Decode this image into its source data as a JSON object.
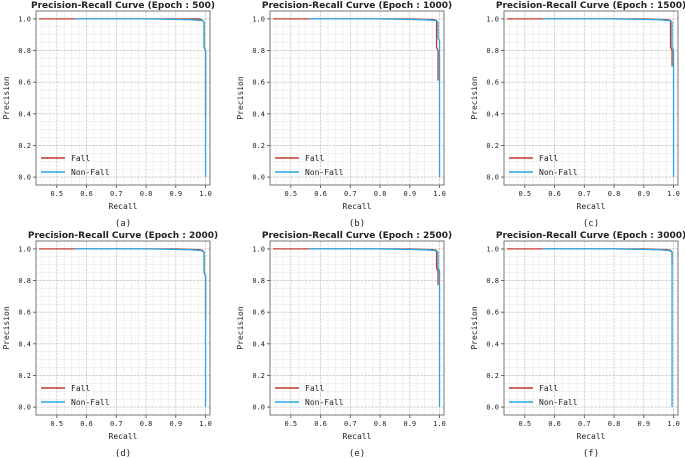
{
  "figure": {
    "legend_labels": [
      "Fall",
      "Non-Fall"
    ],
    "colors": {
      "fall": "#c0392b",
      "non_fall": "#29a8e0",
      "grid_major": "#b8b8b8",
      "grid_minor": "#e6e6e6",
      "frame": "#555555"
    }
  },
  "chart_data": [
    {
      "type": "line",
      "title": "Precision-Recall Curve (Epoch : 500)",
      "caption": "(a)",
      "xlabel": "Recall",
      "ylabel": "Precision",
      "xlim": [
        0.43,
        1.015
      ],
      "ylim": [
        -0.05,
        1.05
      ],
      "xticks": [
        "0.5",
        "0.6",
        "0.7",
        "0.8",
        "0.9",
        "1.0"
      ],
      "yticks": [
        "0.0",
        "0.2",
        "0.4",
        "0.6",
        "0.8",
        "1.0"
      ],
      "grid": true,
      "legend": "lower-left",
      "series": [
        {
          "name": "Fall",
          "x": [
            0.44,
            0.56,
            0.9,
            0.98,
            0.99,
            0.995,
            0.995,
            1.0,
            1.0
          ],
          "y": [
            1.0,
            1.0,
            1.0,
            1.0,
            0.99,
            0.98,
            0.82,
            0.8,
            0.38
          ]
        },
        {
          "name": "Non-Fall",
          "x": [
            0.56,
            0.8,
            0.95,
            0.985,
            0.99,
            0.995,
            0.995,
            1.0,
            1.0
          ],
          "y": [
            1.0,
            1.0,
            0.995,
            0.99,
            0.99,
            0.98,
            0.82,
            0.8,
            0.0
          ]
        }
      ]
    },
    {
      "type": "line",
      "title": "Precision-Recall Curve (Epoch : 1000)",
      "caption": "(b)",
      "xlabel": "Recall",
      "ylabel": "Precision",
      "xlim": [
        0.43,
        1.015
      ],
      "ylim": [
        -0.05,
        1.05
      ],
      "xticks": [
        "0.5",
        "0.6",
        "0.7",
        "0.8",
        "0.9",
        "1.0"
      ],
      "yticks": [
        "0.0",
        "0.2",
        "0.4",
        "0.6",
        "0.8",
        "1.0"
      ],
      "grid": true,
      "legend": "lower-left",
      "series": [
        {
          "name": "Fall",
          "x": [
            0.44,
            0.56,
            0.9,
            0.98,
            0.99,
            0.99,
            0.995,
            0.995
          ],
          "y": [
            1.0,
            1.0,
            1.0,
            0.995,
            0.99,
            0.82,
            0.8,
            0.61
          ]
        },
        {
          "name": "Non-Fall",
          "x": [
            0.56,
            0.8,
            0.95,
            0.985,
            0.995,
            0.995,
            1.0,
            1.0
          ],
          "y": [
            1.0,
            1.0,
            0.995,
            0.99,
            0.98,
            0.88,
            0.86,
            0.0
          ]
        }
      ]
    },
    {
      "type": "line",
      "title": "Precision-Recall Curve (Epoch : 1500)",
      "caption": "(c)",
      "xlabel": "Recall",
      "ylabel": "Precision",
      "xlim": [
        0.43,
        1.015
      ],
      "ylim": [
        -0.05,
        1.05
      ],
      "xticks": [
        "0.5",
        "0.6",
        "0.7",
        "0.8",
        "0.9",
        "1.0"
      ],
      "yticks": [
        "0.0",
        "0.2",
        "0.4",
        "0.6",
        "0.8",
        "1.0"
      ],
      "grid": true,
      "legend": "lower-left",
      "series": [
        {
          "name": "Fall",
          "x": [
            0.44,
            0.56,
            0.9,
            0.98,
            0.99,
            0.99,
            0.995,
            0.995
          ],
          "y": [
            1.0,
            1.0,
            1.0,
            0.995,
            0.99,
            0.82,
            0.8,
            0.7
          ]
        },
        {
          "name": "Non-Fall",
          "x": [
            0.56,
            0.8,
            0.95,
            0.985,
            0.995,
            0.995,
            1.0,
            1.0
          ],
          "y": [
            1.0,
            1.0,
            0.995,
            0.99,
            0.98,
            0.82,
            0.8,
            0.0
          ]
        }
      ]
    },
    {
      "type": "line",
      "title": "Precision-Recall Curve (Epoch : 2000)",
      "caption": "(d)",
      "xlabel": "Recall",
      "ylabel": "Precision",
      "xlim": [
        0.43,
        1.015
      ],
      "ylim": [
        -0.05,
        1.05
      ],
      "xticks": [
        "0.5",
        "0.6",
        "0.7",
        "0.8",
        "0.9",
        "1.0"
      ],
      "yticks": [
        "0.0",
        "0.2",
        "0.4",
        "0.6",
        "0.8",
        "1.0"
      ],
      "grid": true,
      "legend": "lower-left",
      "series": [
        {
          "name": "Fall",
          "x": [
            0.44,
            0.56,
            0.9,
            0.98,
            0.99,
            0.995,
            0.995,
            1.0,
            1.0
          ],
          "y": [
            1.0,
            1.0,
            1.0,
            0.995,
            0.99,
            0.98,
            0.85,
            0.83,
            0.55
          ]
        },
        {
          "name": "Non-Fall",
          "x": [
            0.56,
            0.8,
            0.95,
            0.985,
            0.995,
            0.995,
            1.0,
            1.0
          ],
          "y": [
            1.0,
            1.0,
            0.995,
            0.99,
            0.98,
            0.85,
            0.83,
            0.0
          ]
        }
      ]
    },
    {
      "type": "line",
      "title": "Precision-Recall Curve (Epoch : 2500)",
      "caption": "(e)",
      "xlabel": "Recall",
      "ylabel": "Precision",
      "xlim": [
        0.43,
        1.015
      ],
      "ylim": [
        -0.05,
        1.05
      ],
      "xticks": [
        "0.5",
        "0.6",
        "0.7",
        "0.8",
        "0.9",
        "1.0"
      ],
      "yticks": [
        "0.0",
        "0.2",
        "0.4",
        "0.6",
        "0.8",
        "1.0"
      ],
      "grid": true,
      "legend": "lower-left",
      "series": [
        {
          "name": "Fall",
          "x": [
            0.44,
            0.56,
            0.9,
            0.98,
            0.99,
            0.99,
            0.995,
            0.995
          ],
          "y": [
            1.0,
            1.0,
            1.0,
            0.995,
            0.99,
            0.88,
            0.86,
            0.77
          ]
        },
        {
          "name": "Non-Fall",
          "x": [
            0.56,
            0.8,
            0.95,
            0.985,
            0.995,
            0.995,
            1.0,
            1.0
          ],
          "y": [
            1.0,
            1.0,
            0.995,
            0.99,
            0.98,
            0.88,
            0.86,
            0.0
          ]
        }
      ]
    },
    {
      "type": "line",
      "title": "Precision-Recall Curve (Epoch : 3000)",
      "caption": "(f)",
      "xlabel": "Recall",
      "ylabel": "Precision",
      "xlim": [
        0.43,
        1.015
      ],
      "ylim": [
        -0.05,
        1.05
      ],
      "xticks": [
        "0.5",
        "0.6",
        "0.7",
        "0.8",
        "0.9",
        "1.0"
      ],
      "yticks": [
        "0.0",
        "0.2",
        "0.4",
        "0.6",
        "0.8",
        "1.0"
      ],
      "grid": true,
      "legend": "lower-left",
      "series": [
        {
          "name": "Fall",
          "x": [
            0.44,
            0.56,
            0.9,
            0.98,
            0.99,
            0.995,
            0.995
          ],
          "y": [
            1.0,
            1.0,
            1.0,
            0.995,
            0.99,
            0.98,
            0.9
          ]
        },
        {
          "name": "Non-Fall",
          "x": [
            0.56,
            0.8,
            0.95,
            0.985,
            0.995,
            0.995
          ],
          "y": [
            1.0,
            1.0,
            0.995,
            0.99,
            0.98,
            0.0
          ]
        }
      ]
    }
  ]
}
